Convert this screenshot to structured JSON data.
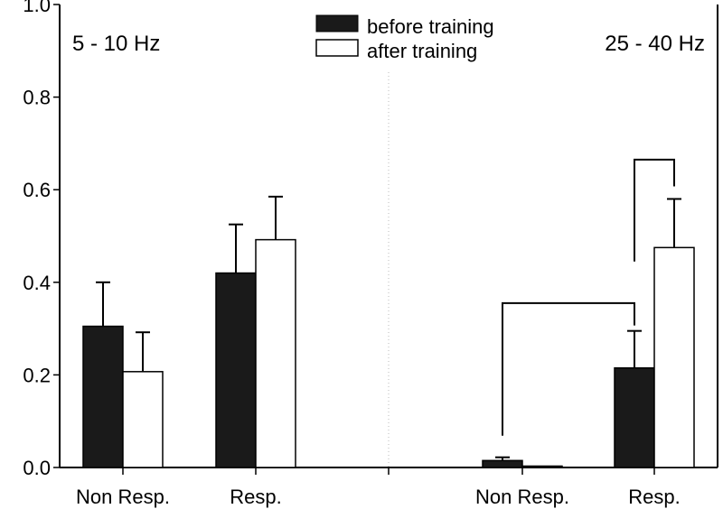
{
  "chart_data": {
    "type": "bar",
    "title": "",
    "xlabel": "",
    "ylabel": "",
    "ylim": [
      0.0,
      1.0
    ],
    "yticks": [
      0.0,
      0.2,
      0.4,
      0.6,
      0.8,
      1.0
    ],
    "ytick_labels": [
      "0.0",
      "0.2",
      "0.4",
      "0.6",
      "0.8",
      "1.0"
    ],
    "legend": {
      "position": "top-center",
      "entries": [
        {
          "label": "before training",
          "fill": "#1a1a1a"
        },
        {
          "label": "after training",
          "fill": "#ffffff"
        }
      ]
    },
    "panels": [
      {
        "label": "5 - 10 Hz",
        "categories": [
          "Non Resp.",
          "Resp."
        ],
        "series": [
          {
            "name": "before training",
            "values": [
              0.305,
              0.42
            ],
            "errors": [
              0.095,
              0.105
            ]
          },
          {
            "name": "after training",
            "values": [
              0.207,
              0.492
            ],
            "errors": [
              0.085,
              0.093
            ]
          }
        ]
      },
      {
        "label": "25 - 40 Hz",
        "categories": [
          "Non Resp.",
          "Resp."
        ],
        "series": [
          {
            "name": "before training",
            "values": [
              0.015,
              0.215
            ],
            "errors": [
              0.007,
              0.08
            ]
          },
          {
            "name": "after training",
            "values": [
              0.003,
              0.475
            ],
            "errors": [
              0.0,
              0.105
            ]
          }
        ]
      }
    ],
    "significance_brackets": [
      {
        "panel": 1,
        "between": "before training Non Resp. vs before training Resp."
      },
      {
        "panel": 1,
        "between": "before training Resp. vs after training Resp."
      }
    ],
    "colors": {
      "before": "#1a1a1a",
      "after": "#ffffff",
      "axis": "#000000",
      "divider": "#bbbbbb"
    }
  }
}
